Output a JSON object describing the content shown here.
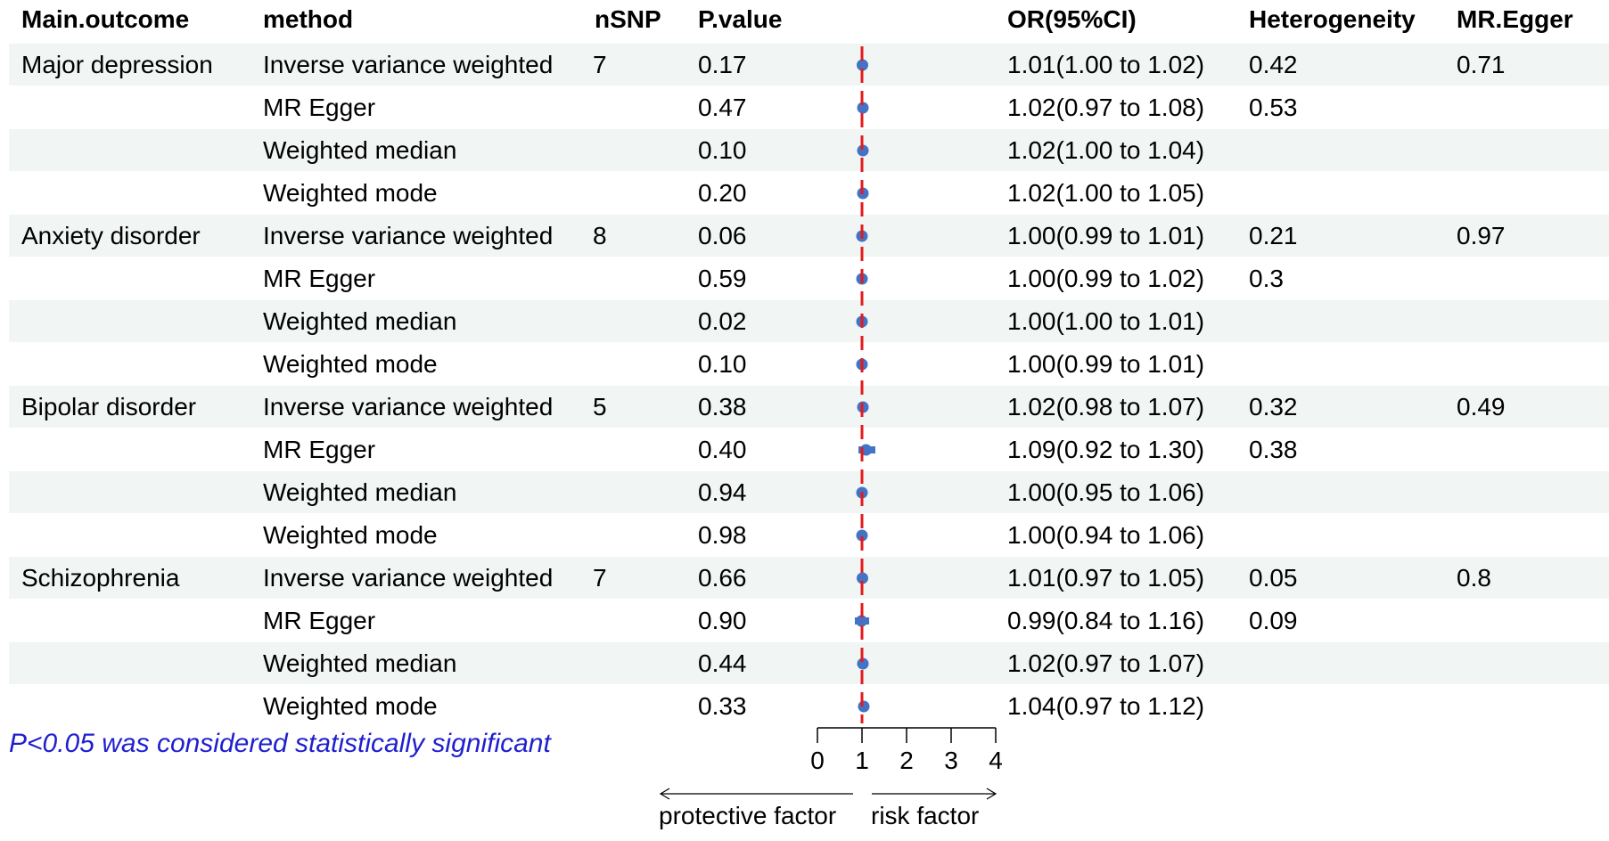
{
  "headers": {
    "outcome": "Main.outcome",
    "method": "method",
    "nsnp": "nSNP",
    "pvalue": "P.value",
    "or": "OR(95%CI)",
    "heterogeneity": "Heterogeneity",
    "mregger": "MR.Egger"
  },
  "rows": [
    {
      "outcome": "Major depression",
      "method": "Inverse variance weighted",
      "nsnp": "7",
      "p": "0.17",
      "or": "1.01(1.00 to 1.02)",
      "het": "0.42",
      "egger": "0.71"
    },
    {
      "outcome": "",
      "method": "MR Egger",
      "nsnp": "",
      "p": "0.47",
      "or": "1.02(0.97 to 1.08)",
      "het": "0.53",
      "egger": ""
    },
    {
      "outcome": "",
      "method": "Weighted median",
      "nsnp": "",
      "p": "0.10",
      "or": "1.02(1.00 to 1.04)",
      "het": "",
      "egger": ""
    },
    {
      "outcome": "",
      "method": "Weighted mode",
      "nsnp": "",
      "p": "0.20",
      "or": "1.02(1.00 to 1.05)",
      "het": "",
      "egger": ""
    },
    {
      "outcome": "Anxiety disorder",
      "method": "Inverse variance weighted",
      "nsnp": "8",
      "p": "0.06",
      "or": "1.00(0.99 to 1.01)",
      "het": "0.21",
      "egger": "0.97"
    },
    {
      "outcome": "",
      "method": "MR Egger",
      "nsnp": "",
      "p": "0.59",
      "or": "1.00(0.99 to 1.02)",
      "het": "0.3",
      "egger": ""
    },
    {
      "outcome": "",
      "method": "Weighted median",
      "nsnp": "",
      "p": "0.02",
      "or": "1.00(1.00 to 1.01)",
      "het": "",
      "egger": ""
    },
    {
      "outcome": "",
      "method": "Weighted mode",
      "nsnp": "",
      "p": "0.10",
      "or": "1.00(0.99 to 1.01)",
      "het": "",
      "egger": ""
    },
    {
      "outcome": "Bipolar disorder",
      "method": "Inverse variance weighted",
      "nsnp": "5",
      "p": "0.38",
      "or": "1.02(0.98 to 1.07)",
      "het": "0.32",
      "egger": "0.49"
    },
    {
      "outcome": "",
      "method": "MR Egger",
      "nsnp": "",
      "p": "0.40",
      "or": "1.09(0.92 to 1.30)",
      "het": "0.38",
      "egger": ""
    },
    {
      "outcome": "",
      "method": "Weighted median",
      "nsnp": "",
      "p": "0.94",
      "or": "1.00(0.95 to 1.06)",
      "het": "",
      "egger": ""
    },
    {
      "outcome": "",
      "method": "Weighted mode",
      "nsnp": "",
      "p": "0.98",
      "or": "1.00(0.94 to 1.06)",
      "het": "",
      "egger": ""
    },
    {
      "outcome": "Schizophrenia",
      "method": "Inverse variance weighted",
      "nsnp": "7",
      "p": "0.66",
      "or": "1.01(0.97 to 1.05)",
      "het": "0.05",
      "egger": "0.8"
    },
    {
      "outcome": "",
      "method": "MR Egger",
      "nsnp": "",
      "p": "0.90",
      "or": "0.99(0.84 to 1.16)",
      "het": "0.09",
      "egger": ""
    },
    {
      "outcome": "",
      "method": "Weighted median",
      "nsnp": "",
      "p": "0.44",
      "or": "1.02(0.97 to 1.07)",
      "het": "",
      "egger": ""
    },
    {
      "outcome": "",
      "method": "Weighted mode",
      "nsnp": "",
      "p": "0.33",
      "or": "1.04(0.97 to 1.12)",
      "het": "",
      "egger": ""
    }
  ],
  "chart_data": {
    "type": "scatter",
    "subtype": "forest",
    "xlim": [
      0,
      4
    ],
    "xticks": [
      "0",
      "1",
      "2",
      "3",
      "4"
    ],
    "reference_line": 1,
    "points": [
      {
        "or": 1.01,
        "lo": 1.0,
        "hi": 1.02
      },
      {
        "or": 1.02,
        "lo": 0.97,
        "hi": 1.08
      },
      {
        "or": 1.02,
        "lo": 1.0,
        "hi": 1.04
      },
      {
        "or": 1.02,
        "lo": 1.0,
        "hi": 1.05
      },
      {
        "or": 1.0,
        "lo": 0.99,
        "hi": 1.01
      },
      {
        "or": 1.0,
        "lo": 0.99,
        "hi": 1.02
      },
      {
        "or": 1.0,
        "lo": 1.0,
        "hi": 1.01
      },
      {
        "or": 1.0,
        "lo": 0.99,
        "hi": 1.01
      },
      {
        "or": 1.02,
        "lo": 0.98,
        "hi": 1.07
      },
      {
        "or": 1.09,
        "lo": 0.92,
        "hi": 1.3
      },
      {
        "or": 1.0,
        "lo": 0.95,
        "hi": 1.06
      },
      {
        "or": 1.0,
        "lo": 0.94,
        "hi": 1.06
      },
      {
        "or": 1.01,
        "lo": 0.97,
        "hi": 1.05
      },
      {
        "or": 0.99,
        "lo": 0.84,
        "hi": 1.16
      },
      {
        "or": 1.02,
        "lo": 0.97,
        "hi": 1.07
      },
      {
        "or": 1.04,
        "lo": 0.97,
        "hi": 1.12
      }
    ],
    "direction_labels": {
      "left": "protective factor",
      "right": "risk factor"
    },
    "colors": {
      "point": "#4472c4",
      "reference": "#e31a1c",
      "note": "#1f1fd0",
      "band": "#f1f5f3"
    }
  },
  "note": "P<0.05 was considered statistically significant"
}
